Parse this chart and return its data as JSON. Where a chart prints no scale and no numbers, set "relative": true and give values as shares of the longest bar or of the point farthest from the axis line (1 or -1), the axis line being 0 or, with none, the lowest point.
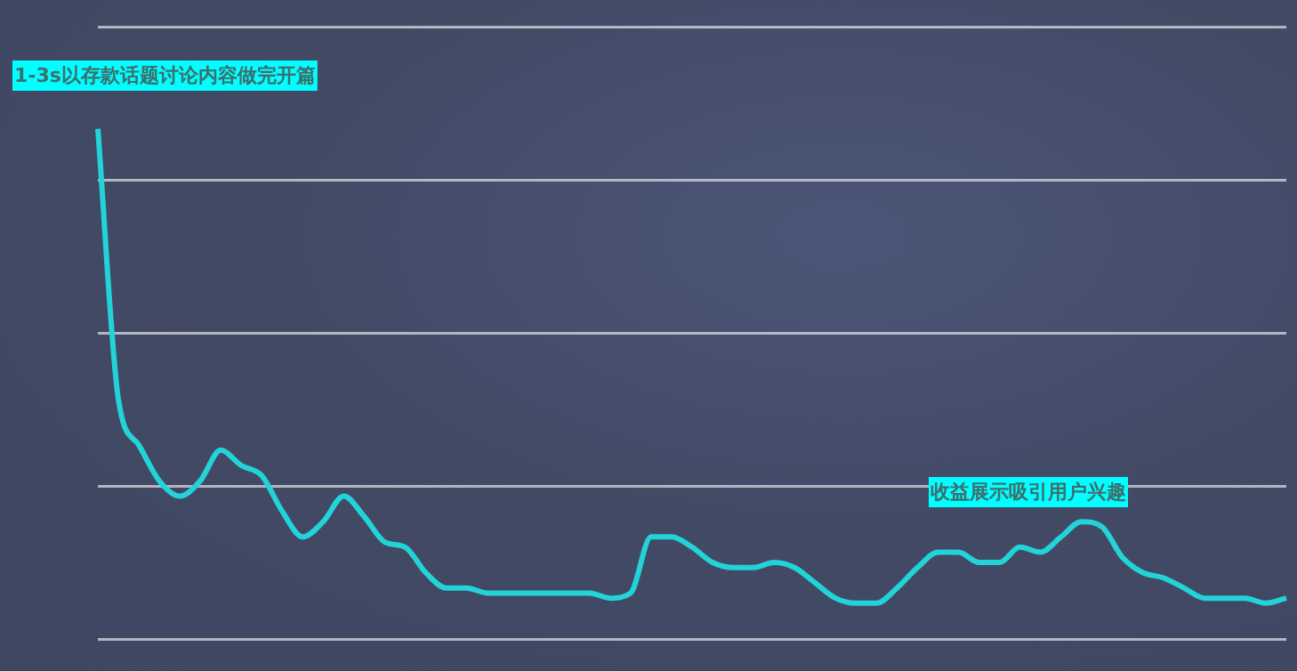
{
  "chart_data": {
    "type": "line",
    "relative": true,
    "grid": "y",
    "categories": [
      null,
      null,
      null,
      null,
      null,
      null,
      null,
      null,
      null,
      null,
      null,
      null,
      null,
      null,
      null,
      null,
      null,
      null,
      null,
      null,
      null,
      null,
      null,
      null,
      null,
      null,
      null,
      null,
      null,
      null,
      null,
      null,
      null,
      null,
      null,
      null,
      null,
      null,
      null,
      null,
      null,
      null,
      null,
      null,
      null,
      null,
      null,
      null,
      null,
      null,
      null,
      null,
      null,
      null,
      null,
      null,
      null,
      null,
      null
    ],
    "series": [
      {
        "color": "#22d3d8",
        "values": [
          1.0,
          0.47,
          0.38,
          0.31,
          0.28,
          0.31,
          0.37,
          0.34,
          0.32,
          0.25,
          0.2,
          0.23,
          0.28,
          0.24,
          0.19,
          0.18,
          0.13,
          0.1,
          0.1,
          0.09,
          0.09,
          0.09,
          0.09,
          0.09,
          0.09,
          0.08,
          0.09,
          0.2,
          0.2,
          0.18,
          0.15,
          0.14,
          0.14,
          0.15,
          0.14,
          0.11,
          0.08,
          0.07,
          0.07,
          0.1,
          0.14,
          0.17,
          0.17,
          0.15,
          0.15,
          0.18,
          0.17,
          0.2,
          0.23,
          0.22,
          0.16,
          0.13,
          0.12,
          0.1,
          0.08,
          0.08,
          0.08,
          0.07,
          0.08
        ]
      }
    ],
    "annotations": [
      "1-3s以存款话题讨论内容做完开篇",
      "收益展示吸引用户兴趣"
    ]
  }
}
